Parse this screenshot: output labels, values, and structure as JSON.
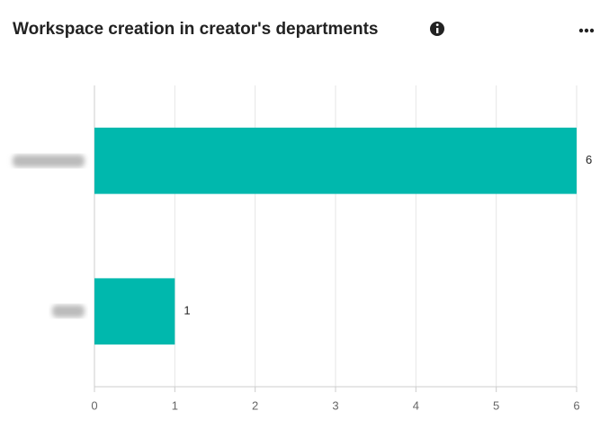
{
  "chart_data": {
    "type": "bar",
    "orientation": "horizontal",
    "title": "Workspace creation in creator's departments",
    "categories": [
      null,
      null
    ],
    "values": [
      6,
      1
    ],
    "color": "#00b8ad",
    "xlim": [
      0,
      6
    ],
    "xticks": [
      0,
      1,
      2,
      3,
      4,
      5,
      6
    ],
    "grid": true
  }
}
